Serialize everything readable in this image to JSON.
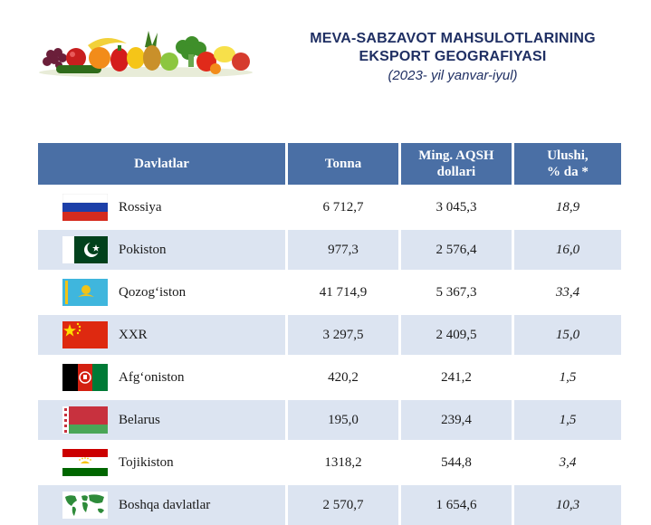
{
  "header": {
    "title_line1": "MEVA-SABZAVOT MAHSULOTLARINING",
    "title_line2": "EKSPORT GEOGRAFIYASI",
    "subtitle": "(2023- yil yanvar-iyul)"
  },
  "table": {
    "columns": {
      "country": "Davlatlar",
      "tonna": "Tonna",
      "usd_line1": "Ming. AQSH",
      "usd_line2": "dollari",
      "share_line1": "Ulushi,",
      "share_line2": "% da *"
    },
    "rows": [
      {
        "country": "Rossiya",
        "tonna": "6 712,7",
        "usd": "3 045,3",
        "share": "18,9",
        "flag": "russia-flag-icon"
      },
      {
        "country": "Pokiston",
        "tonna": "977,3",
        "usd": "2 576,4",
        "share": "16,0",
        "flag": "pakistan-flag-icon"
      },
      {
        "country": "Qozog‘iston",
        "tonna": "41 714,9",
        "usd": "5 367,3",
        "share": "33,4",
        "flag": "kazakhstan-flag-icon"
      },
      {
        "country": "XXR",
        "tonna": "3 297,5",
        "usd": "2 409,5",
        "share": "15,0",
        "flag": "china-flag-icon"
      },
      {
        "country": "Afg‘oniston",
        "tonna": "420,2",
        "usd": "241,2",
        "share": "1,5",
        "flag": "afghanistan-flag-icon"
      },
      {
        "country": "Belarus",
        "tonna": "195,0",
        "usd": "239,4",
        "share": "1,5",
        "flag": "belarus-flag-icon"
      },
      {
        "country": "Tojikiston",
        "tonna": "1318,2",
        "usd": "544,8",
        "share": "3,4",
        "flag": "tajikistan-flag-icon"
      },
      {
        "country": "Boshqa davlatlar",
        "tonna": "2 570,7",
        "usd": "1 654,6",
        "share": "10,3",
        "flag": "world-map-icon"
      }
    ]
  },
  "images": {
    "banner": "fruits-vegetables-banner"
  },
  "colors": {
    "header_bg": "#4a6fa5",
    "row_alt_bg": "#dce4f1",
    "title_color": "#1f2f63"
  }
}
